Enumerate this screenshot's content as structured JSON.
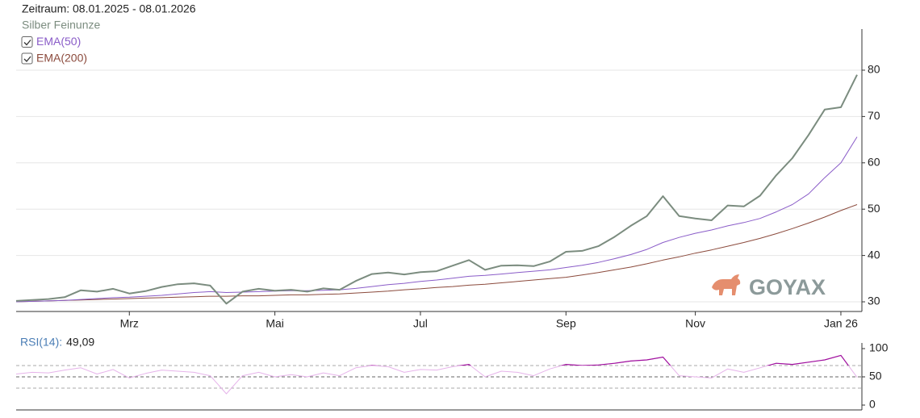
{
  "title": "Zeitraum: 08.01.2025 - 08.01.2026",
  "watermark": "GOYAX",
  "chart_data": [
    {
      "type": "line",
      "categories": [
        null,
        null,
        null,
        null,
        null,
        null,
        null,
        "Mrz",
        null,
        null,
        null,
        null,
        null,
        null,
        null,
        null,
        "Mai",
        null,
        null,
        null,
        null,
        null,
        null,
        null,
        null,
        "Jul",
        null,
        null,
        null,
        null,
        null,
        null,
        null,
        null,
        "Sep",
        null,
        null,
        null,
        null,
        null,
        null,
        null,
        "Nov",
        null,
        null,
        null,
        null,
        null,
        null,
        null,
        null,
        "Jan 26",
        null
      ],
      "series": [
        {
          "name": "Silber Feinunze",
          "color": "#7b8c7f",
          "values": [
            30.2,
            30.4,
            30.6,
            31.0,
            32.5,
            32.2,
            32.8,
            31.8,
            32.3,
            33.2,
            33.8,
            34.0,
            33.5,
            29.6,
            32.2,
            32.8,
            32.4,
            32.6,
            32.2,
            32.9,
            32.6,
            34.5,
            36.0,
            36.3,
            35.9,
            36.4,
            36.6,
            37.8,
            39.0,
            36.9,
            37.8,
            37.9,
            37.7,
            38.7,
            40.8,
            41.0,
            42.0,
            44.0,
            46.4,
            48.5,
            52.8,
            48.5,
            48.0,
            47.6,
            50.8,
            50.6,
            52.9,
            57.3,
            61.0,
            66.0,
            71.5,
            72.0,
            79.0
          ]
        },
        {
          "name": "EMA(50)",
          "color": "#8a5cc8",
          "values": [
            30.0,
            30.1,
            30.2,
            30.3,
            30.5,
            30.7,
            30.9,
            31.0,
            31.2,
            31.4,
            31.7,
            32.0,
            32.2,
            32.0,
            32.1,
            32.2,
            32.3,
            32.4,
            32.4,
            32.5,
            32.6,
            32.9,
            33.3,
            33.7,
            34.0,
            34.4,
            34.7,
            35.1,
            35.5,
            35.7,
            36.0,
            36.3,
            36.6,
            36.9,
            37.4,
            37.9,
            38.5,
            39.3,
            40.2,
            41.3,
            42.8,
            43.9,
            44.8,
            45.5,
            46.4,
            47.1,
            48.0,
            49.4,
            51.0,
            53.3,
            56.8,
            60.0,
            65.6
          ]
        },
        {
          "name": "EMA(200)",
          "color": "#8b4a3c",
          "values": [
            30.0,
            30.1,
            30.2,
            30.3,
            30.4,
            30.5,
            30.6,
            30.7,
            30.8,
            30.9,
            31.0,
            31.1,
            31.2,
            31.2,
            31.3,
            31.3,
            31.4,
            31.5,
            31.5,
            31.6,
            31.7,
            31.9,
            32.1,
            32.3,
            32.6,
            32.8,
            33.1,
            33.3,
            33.6,
            33.8,
            34.1,
            34.4,
            34.7,
            35.0,
            35.3,
            35.8,
            36.3,
            36.9,
            37.5,
            38.2,
            39.0,
            39.7,
            40.5,
            41.2,
            42.0,
            42.8,
            43.7,
            44.7,
            45.8,
            47.0,
            48.3,
            49.7,
            51.0
          ]
        }
      ],
      "ylim": [
        28,
        89
      ],
      "yticks": [
        30,
        40,
        50,
        60,
        70,
        80
      ],
      "grid": true
    },
    {
      "type": "line",
      "series": [
        {
          "name": "RSI(14):",
          "color": "#e6b3ea",
          "high_color": "#a0109e",
          "values": [
            55,
            58,
            57,
            62,
            66,
            55,
            63,
            48,
            56,
            62,
            60,
            58,
            52,
            20,
            52,
            58,
            50,
            54,
            50,
            57,
            52,
            66,
            70,
            68,
            58,
            63,
            62,
            68,
            72,
            50,
            60,
            58,
            52,
            64,
            72,
            70,
            71,
            74,
            78,
            80,
            85,
            52,
            50,
            48,
            64,
            58,
            66,
            74,
            72,
            76,
            80,
            88,
            49.09
          ],
          "current": {
            "value": 49.09,
            "label": "49,09"
          }
        }
      ],
      "ylim": [
        0,
        100
      ],
      "yticks": [
        0,
        50,
        100
      ],
      "ref_lines": [
        30,
        50,
        70
      ]
    }
  ]
}
